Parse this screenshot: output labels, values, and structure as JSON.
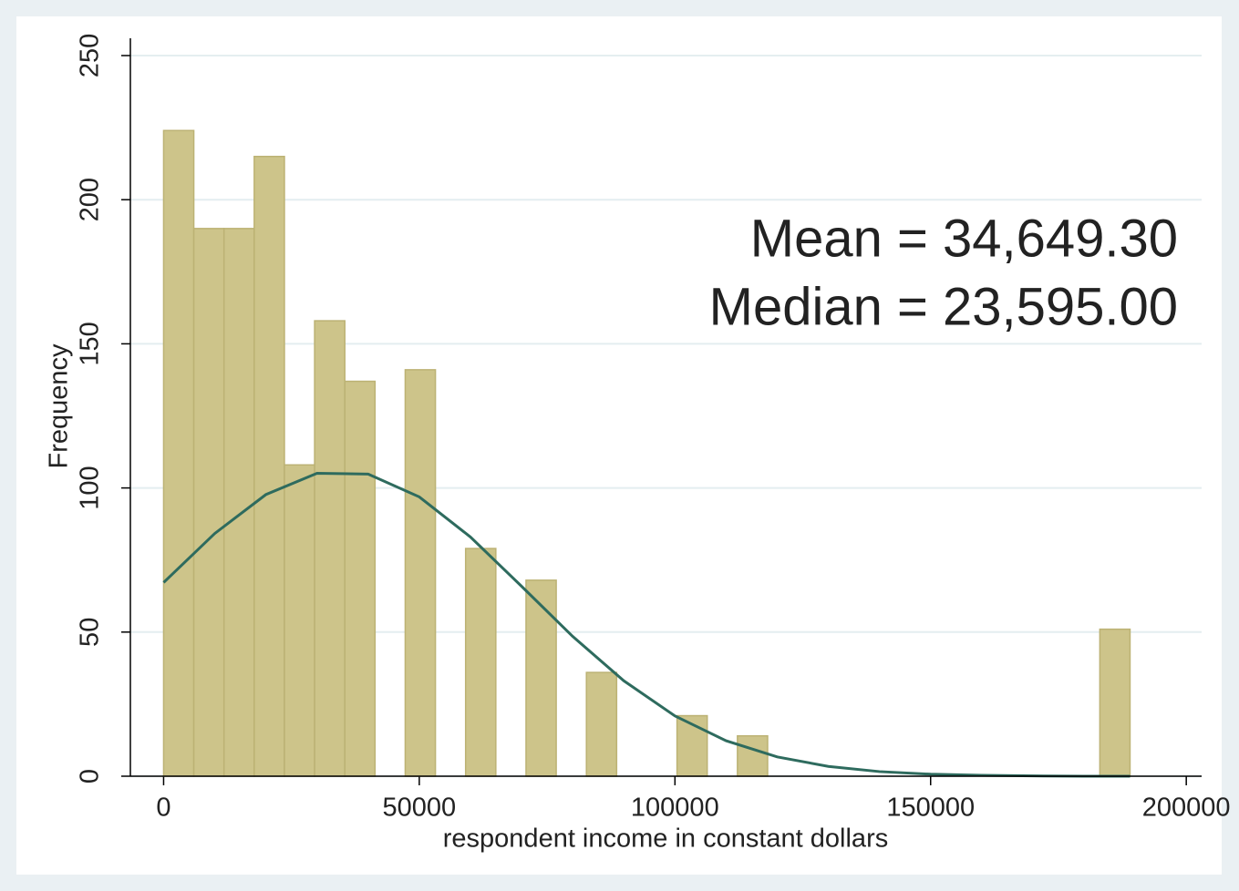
{
  "chart_data": {
    "type": "histogram",
    "xlabel": "respondent income in constant dollars",
    "ylabel": "Frequency",
    "bins": [
      0,
      5906,
      11813,
      17719,
      23625,
      29531,
      35438,
      41344,
      47250,
      53156,
      59063,
      64969,
      70875,
      76781,
      82688,
      88594,
      94500,
      100406,
      106313,
      112219,
      118125,
      124031,
      129938,
      135844,
      141750,
      147656,
      153563,
      159469,
      165375,
      171281,
      177188,
      183094,
      189000
    ],
    "counts": [
      224,
      190,
      190,
      215,
      108,
      158,
      137,
      0,
      141,
      0,
      79,
      0,
      68,
      0,
      36,
      0,
      0,
      21,
      0,
      14,
      0,
      0,
      0,
      0,
      0,
      0,
      0,
      0,
      0,
      0,
      0,
      51
    ],
    "color": "#cdc48a",
    "normal_curve": {
      "color": "#2e6b5e",
      "x": [
        0,
        10000,
        20000,
        30000,
        40000,
        50000,
        60000,
        70000,
        80000,
        90000,
        100000,
        110000,
        120000,
        130000,
        140000,
        150000,
        160000,
        170000,
        180000,
        189000
      ],
      "values": [
        67.2,
        84.2,
        97.7,
        105.1,
        104.8,
        96.9,
        83.0,
        65.9,
        48.5,
        33.1,
        20.9,
        12.3,
        6.7,
        3.4,
        1.6,
        0.7,
        0.3,
        0.1,
        0.0,
        0.0
      ]
    },
    "annotations": [
      "Mean = 34,649.30",
      "Median = 23,595.00"
    ],
    "xlim": [
      -6500,
      203000
    ],
    "ylim": [
      0,
      256
    ],
    "xticks": [
      0,
      50000,
      100000,
      150000,
      200000
    ],
    "yticks": [
      0,
      50,
      100,
      150,
      200,
      250
    ],
    "grid": true
  }
}
